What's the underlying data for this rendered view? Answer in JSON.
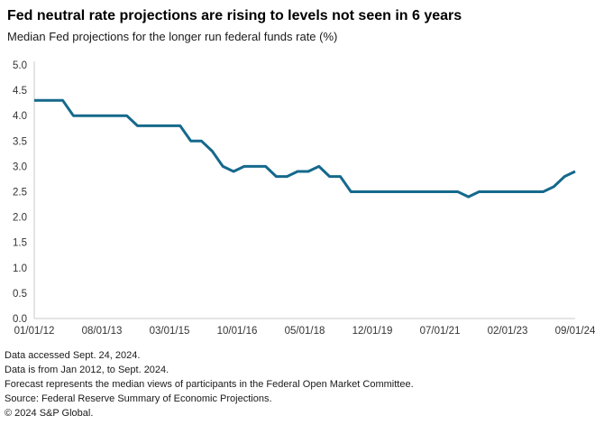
{
  "header": {
    "title": "Fed neutral rate projections are rising to levels not seen in 6 years",
    "subtitle": "Median Fed projections for the longer run federal funds rate (%)"
  },
  "chart_data": {
    "type": "line",
    "title": "Fed neutral rate projections are rising to levels not seen in 6 years",
    "subtitle": "Median Fed projections for the longer run federal funds rate (%)",
    "xlabel": "",
    "ylabel": "",
    "ylim": [
      0.0,
      5.0
    ],
    "ytick_step": 0.5,
    "grid": false,
    "legend_position": "none",
    "line_color": "#15698C",
    "axis_color": "#C9C9C9",
    "xtick_labels": [
      "01/01/12",
      "08/01/13",
      "03/01/15",
      "10/01/16",
      "05/01/18",
      "12/01/19",
      "07/01/21",
      "02/01/23",
      "09/01/24"
    ],
    "x": [
      "2012-01",
      "2012-04",
      "2012-06",
      "2012-09",
      "2012-12",
      "2013-03",
      "2013-06",
      "2013-09",
      "2013-12",
      "2014-03",
      "2014-06",
      "2014-09",
      "2014-12",
      "2015-03",
      "2015-06",
      "2015-09",
      "2015-12",
      "2016-03",
      "2016-06",
      "2016-09",
      "2016-12",
      "2017-03",
      "2017-06",
      "2017-09",
      "2017-12",
      "2018-03",
      "2018-06",
      "2018-09",
      "2018-12",
      "2019-03",
      "2019-06",
      "2019-09",
      "2019-12",
      "2020-06",
      "2020-09",
      "2020-12",
      "2021-03",
      "2021-06",
      "2021-09",
      "2021-12",
      "2022-03",
      "2022-06",
      "2022-09",
      "2022-12",
      "2023-03",
      "2023-06",
      "2023-09",
      "2023-12",
      "2024-03",
      "2024-06",
      "2024-09"
    ],
    "values": [
      4.3,
      4.3,
      4.3,
      4.3,
      4.0,
      4.0,
      4.0,
      4.0,
      4.0,
      4.0,
      3.8,
      3.8,
      3.8,
      3.8,
      3.8,
      3.5,
      3.5,
      3.3,
      3.0,
      2.9,
      3.0,
      3.0,
      3.0,
      2.8,
      2.8,
      2.9,
      2.9,
      3.0,
      2.8,
      2.8,
      2.5,
      2.5,
      2.5,
      2.5,
      2.5,
      2.5,
      2.5,
      2.5,
      2.5,
      2.5,
      2.4,
      2.5,
      2.5,
      2.5,
      2.5,
      2.5,
      2.5,
      2.5,
      2.6,
      2.8,
      2.9
    ]
  },
  "footnotes": {
    "lines": [
      "Data accessed Sept. 24, 2024.",
      "Data is from Jan 2012, to Sept. 2024.",
      "Forecast represents the median views of participants in the Federal Open Market Committee.",
      "Source: Federal Reserve Summary of Economic Projections.",
      "© 2024 S&P Global."
    ]
  }
}
